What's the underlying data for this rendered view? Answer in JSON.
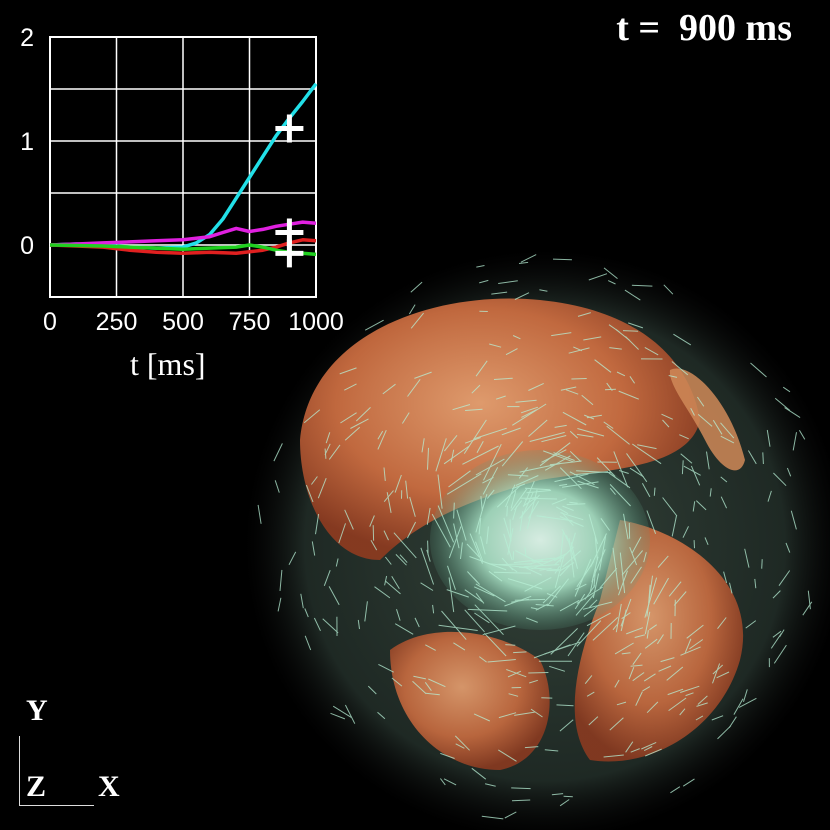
{
  "time_label": "t =  900 ms",
  "axis_triad": {
    "y": "Y",
    "z": "Z",
    "x": "X"
  },
  "chart_data": {
    "type": "line",
    "xlabel": "t [ms]",
    "ylabel": "",
    "xlim": [
      0,
      1000
    ],
    "ylim": [
      -0.5,
      2.0
    ],
    "x_ticks": [
      0,
      250,
      500,
      750,
      1000
    ],
    "x_tick_labels": [
      "0",
      "250",
      "500",
      "750",
      "1000"
    ],
    "y_ticks": [
      0,
      1,
      2
    ],
    "y_tick_labels": [
      "0",
      "1",
      "2"
    ],
    "grid": true,
    "series": [
      {
        "color": "#22e0e8",
        "x": [
          0,
          100,
          200,
          300,
          400,
          500,
          550,
          600,
          650,
          700,
          750,
          800,
          850,
          900,
          950,
          1000
        ],
        "y": [
          0,
          0.01,
          0.0,
          -0.02,
          -0.03,
          -0.02,
          0.02,
          0.1,
          0.25,
          0.45,
          0.65,
          0.85,
          1.05,
          1.22,
          1.38,
          1.55
        ]
      },
      {
        "color": "#e020e0",
        "x": [
          0,
          100,
          200,
          300,
          400,
          500,
          600,
          650,
          700,
          750,
          800,
          850,
          900,
          950,
          1000
        ],
        "y": [
          0,
          0.01,
          0.02,
          0.03,
          0.04,
          0.05,
          0.08,
          0.12,
          0.16,
          0.13,
          0.15,
          0.18,
          0.2,
          0.22,
          0.21
        ]
      },
      {
        "color": "#e02020",
        "x": [
          0,
          100,
          200,
          300,
          400,
          500,
          600,
          700,
          800,
          850,
          900,
          950,
          1000
        ],
        "y": [
          0,
          -0.01,
          -0.02,
          -0.05,
          -0.07,
          -0.08,
          -0.07,
          -0.08,
          -0.05,
          -0.02,
          0.02,
          0.05,
          0.04
        ]
      },
      {
        "color": "#20d020",
        "x": [
          0,
          200,
          400,
          500,
          600,
          700,
          750,
          800,
          850,
          900,
          950,
          1000
        ],
        "y": [
          0,
          -0.01,
          -0.03,
          -0.04,
          -0.03,
          -0.02,
          0.0,
          -0.02,
          -0.05,
          -0.07,
          -0.08,
          -0.09
        ]
      }
    ],
    "markers": [
      {
        "x": 900,
        "y": 1.12,
        "symbol": "+"
      },
      {
        "x": 900,
        "y": 0.12,
        "symbol": "+"
      },
      {
        "x": 900,
        "y": -0.08,
        "symbol": "+"
      }
    ]
  }
}
